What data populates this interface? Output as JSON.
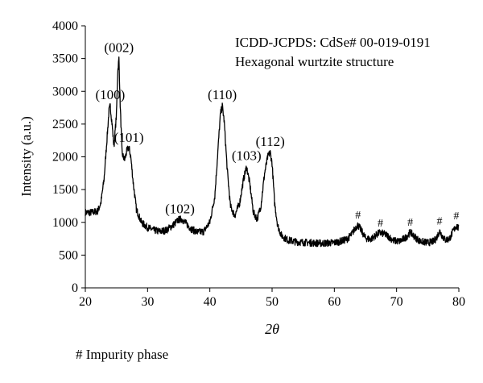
{
  "chart_data": {
    "type": "line",
    "xlabel": "2θ",
    "ylabel": "Intensity (a.u.)",
    "xlim": [
      20,
      80
    ],
    "ylim": [
      0,
      4000
    ],
    "xticks": [
      20,
      30,
      40,
      50,
      60,
      70,
      80
    ],
    "yticks": [
      0,
      500,
      1000,
      1500,
      2000,
      2500,
      3000,
      3500,
      4000
    ],
    "grid": false,
    "legend": "none",
    "line_color": "#000000",
    "annotations": {
      "title_line1": "ICDD-JCPDS: CdSe# 00-019-0191",
      "title_line2": "Hexagonal wurtzite structure"
    },
    "peak_labels": [
      {
        "text": "(100)",
        "x": 24.0,
        "y": 2780
      },
      {
        "text": "(002)",
        "x": 25.4,
        "y": 3500
      },
      {
        "text": "(101)",
        "x": 27.0,
        "y": 2130
      },
      {
        "text": "(102)",
        "x": 35.2,
        "y": 1040
      },
      {
        "text": "(110)",
        "x": 42.0,
        "y": 2780
      },
      {
        "text": "(103)",
        "x": 45.9,
        "y": 1850
      },
      {
        "text": "(112)",
        "x": 49.7,
        "y": 2070
      }
    ],
    "impurity_marks": [
      {
        "text": "#",
        "x": 63.8,
        "y": 960
      },
      {
        "text": "#",
        "x": 67.4,
        "y": 840
      },
      {
        "text": "#",
        "x": 72.2,
        "y": 850
      },
      {
        "text": "#",
        "x": 76.9,
        "y": 870
      },
      {
        "text": "#",
        "x": 79.6,
        "y": 950
      }
    ],
    "series": [
      {
        "x": [
          20,
          21,
          22,
          22.5,
          23,
          23.5,
          23.8,
          24.0,
          24.3,
          24.6,
          25.0,
          25.2,
          25.4,
          25.6,
          25.9,
          26.3,
          26.7,
          27.0,
          27.3,
          27.7,
          28.2,
          29,
          30,
          31,
          32,
          33,
          34,
          35,
          35.5,
          36,
          37,
          38,
          39,
          40,
          40.8,
          41.3,
          41.7,
          42.0,
          42.3,
          42.8,
          43.3,
          44,
          44.8,
          45.4,
          45.9,
          46.4,
          47,
          47.6,
          48.2,
          48.8,
          49.3,
          49.7,
          50.0,
          50.4,
          50.9,
          51.5,
          52.5,
          54,
          56,
          58,
          60,
          61,
          62,
          62.8,
          63.4,
          63.8,
          64.3,
          65,
          65.8,
          66.5,
          67.2,
          67.8,
          68.5,
          69.5,
          70.5,
          71.5,
          72.2,
          72.9,
          73.8,
          75,
          76.0,
          76.5,
          76.9,
          77.3,
          77.8,
          78.5,
          79.0,
          79.6,
          80
        ],
        "y": [
          1150,
          1150,
          1170,
          1300,
          1650,
          2300,
          2700,
          2780,
          2500,
          2150,
          2650,
          3300,
          3500,
          2800,
          2050,
          1950,
          2100,
          2150,
          2000,
          1600,
          1200,
          1000,
          920,
          880,
          860,
          880,
          950,
          1040,
          1050,
          1000,
          900,
          850,
          860,
          1000,
          1400,
          2100,
          2650,
          2780,
          2550,
          1800,
          1250,
          1100,
          1300,
          1650,
          1850,
          1600,
          1150,
          1050,
          1250,
          1750,
          2000,
          2070,
          1900,
          1300,
          950,
          800,
          730,
          700,
          690,
          680,
          690,
          710,
          740,
          820,
          920,
          960,
          880,
          760,
          740,
          790,
          840,
          830,
          800,
          720,
          710,
          770,
          850,
          780,
          710,
          690,
          710,
          780,
          870,
          800,
          730,
          750,
          850,
          950,
          900
        ]
      }
    ]
  },
  "footnote": "# Impurity phase"
}
